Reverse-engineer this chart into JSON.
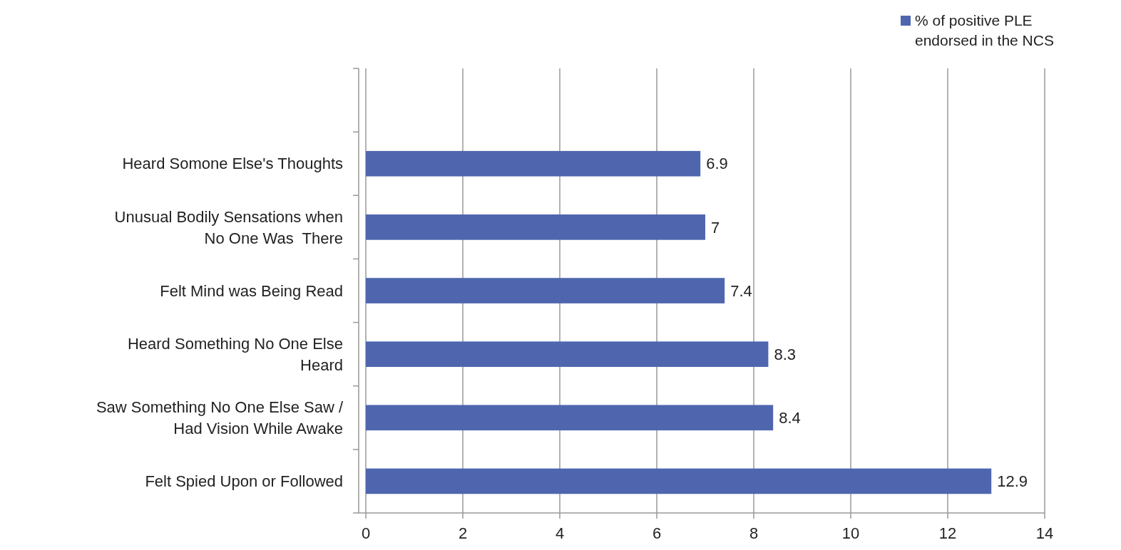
{
  "chart_data": {
    "type": "bar",
    "orientation": "horizontal",
    "categories": [
      null,
      "Heard Somone Else's Thoughts",
      "Unusual Bodily Sensations when No One Was  There",
      "Felt Mind was Being Read",
      "Heard Something No One Else Heard",
      "Saw Something No One Else Saw / Had Vision While Awake",
      "Felt Spied Upon or Followed"
    ],
    "series": [
      {
        "name": "% of positive PLE endorsed in the NCS",
        "color": "#4f66ae",
        "values": [
          null,
          6.9,
          7,
          7.4,
          8.3,
          8.4,
          12.9
        ]
      }
    ],
    "xlim": [
      0,
      14
    ],
    "xticks": [
      0,
      2,
      4,
      6,
      8,
      10,
      12,
      14
    ],
    "grid": "x",
    "legend": "top right",
    "data_labels": true
  }
}
